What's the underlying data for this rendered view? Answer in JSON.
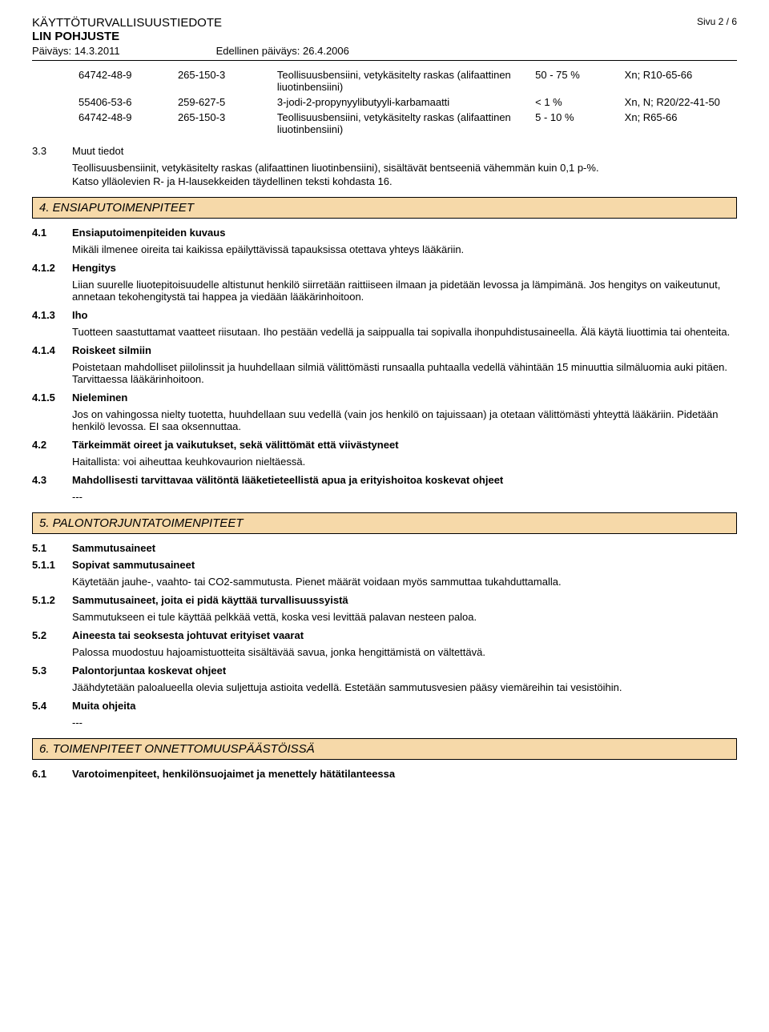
{
  "header": {
    "title1": "KÄYTTÖTURVALLISUUSTIEDOTE",
    "title2": "LIN POHJUSTE",
    "date_left": "Päiväys: 14.3.2011",
    "date_right": "Edellinen päiväys: 26.4.2006",
    "page": "Sivu 2 / 6"
  },
  "chem_table": {
    "rows": [
      {
        "cas": "64742-48-9",
        "ec": "265-150-3",
        "name": "Teollisuusbensiini, vetykäsitelty raskas (alifaattinen liuotinbensiini)",
        "pct": "50 - 75 %",
        "class": "Xn; R10-65-66"
      },
      {
        "cas": "55406-53-6",
        "ec": "259-627-5",
        "name": "3-jodi-2-propynyylibutyyli-karbamaatti",
        "pct": "< 1 %",
        "class": "Xn, N; R20/22-41-50"
      },
      {
        "cas": "64742-48-9",
        "ec": "265-150-3",
        "name": "Teollisuusbensiini, vetykäsitelty raskas (alifaattinen liuotinbensiini)",
        "pct": "5 - 10 %",
        "class": "Xn; R65-66"
      }
    ]
  },
  "s3_3": {
    "num": "3.3",
    "label": "Muut tiedot",
    "body1": "Teollisuusbensiinit, vetykäsitelty raskas (alifaattinen liuotinbensiini), sisältävät bentseeniä vähemmän kuin 0,1 p-%.",
    "body2": "Katso ylläolevien R- ja H-lausekkeiden täydellinen teksti kohdasta 16."
  },
  "section4": {
    "title": "4. ENSIAPUTOIMENPITEET",
    "s4_1": {
      "num": "4.1",
      "label": "Ensiaputoimenpiteiden kuvaus",
      "body": "Mikäli ilmenee oireita tai kaikissa epäilyttävissä tapauksissa otettava yhteys lääkäriin."
    },
    "s4_1_2": {
      "num": "4.1.2",
      "label": "Hengitys",
      "body": "Liian suurelle liuotepitoisuudelle altistunut henkilö siirretään raittiiseen ilmaan ja pidetään levossa ja lämpimänä. Jos hengitys on vaikeutunut, annetaan tekohengitystä tai happea ja viedään lääkärinhoitoon."
    },
    "s4_1_3": {
      "num": "4.1.3",
      "label": "Iho",
      "body": "Tuotteen saastuttamat vaatteet riisutaan. Iho pestään vedellä ja saippualla tai sopivalla ihonpuhdistusaineella. Älä käytä liuottimia tai ohenteita."
    },
    "s4_1_4": {
      "num": "4.1.4",
      "label": "Roiskeet silmiin",
      "body": "Poistetaan mahdolliset piilolinssit ja huuhdellaan silmiä välittömästi runsaalla puhtaalla vedellä vähintään 15 minuuttia silmäluomia auki pitäen. Tarvittaessa lääkärinhoitoon."
    },
    "s4_1_5": {
      "num": "4.1.5",
      "label": "Nieleminen",
      "body": "Jos on vahingossa nielty tuotetta, huuhdellaan suu vedellä (vain jos henkilö on tajuissaan) ja otetaan välittömästi yhteyttä lääkäriin. Pidetään henkilö levossa. EI saa oksennuttaa."
    },
    "s4_2": {
      "num": "4.2",
      "label": "Tärkeimmät oireet ja vaikutukset, sekä välittömät että viivästyneet",
      "body": "Haitallista: voi aiheuttaa keuhkovaurion nieltäessä."
    },
    "s4_3": {
      "num": "4.3",
      "label": "Mahdollisesti tarvittavaa välitöntä lääketieteellistä apua ja erityishoitoa koskevat ohjeet",
      "body": "---"
    }
  },
  "section5": {
    "title": "5. PALONTORJUNTATOIMENPITEET",
    "s5_1": {
      "num": "5.1",
      "label": "Sammutusaineet"
    },
    "s5_1_1": {
      "num": "5.1.1",
      "label": "Sopivat sammutusaineet",
      "body": "Käytetään jauhe-, vaahto- tai CO2-sammutusta. Pienet määrät voidaan myös sammuttaa tukahduttamalla."
    },
    "s5_1_2": {
      "num": "5.1.2",
      "label": "Sammutusaineet, joita ei pidä käyttää turvallisuussyistä",
      "body": "Sammutukseen ei tule käyttää pelkkää vettä, koska vesi levittää palavan nesteen paloa."
    },
    "s5_2": {
      "num": "5.2",
      "label": "Aineesta tai seoksesta johtuvat erityiset vaarat",
      "body": "Palossa muodostuu hajoamistuotteita sisältävää savua, jonka hengittämistä on vältettävä."
    },
    "s5_3": {
      "num": "5.3",
      "label": "Palontorjuntaa koskevat ohjeet",
      "body": "Jäähdytetään paloalueella olevia suljettuja astioita vedellä. Estetään sammutusvesien pääsy viemäreihin tai vesistöihin."
    },
    "s5_4": {
      "num": "5.4",
      "label": "Muita ohjeita",
      "body": "---"
    }
  },
  "section6": {
    "title": "6. TOIMENPITEET ONNETTOMUUSPÄÄSTÖISSÄ",
    "s6_1": {
      "num": "6.1",
      "label": "Varotoimenpiteet, henkilönsuojaimet ja menettely hätätilanteessa"
    }
  },
  "colors": {
    "section_bg": "#f6d9a9",
    "border": "#000000",
    "text": "#000000",
    "page_bg": "#ffffff"
  }
}
